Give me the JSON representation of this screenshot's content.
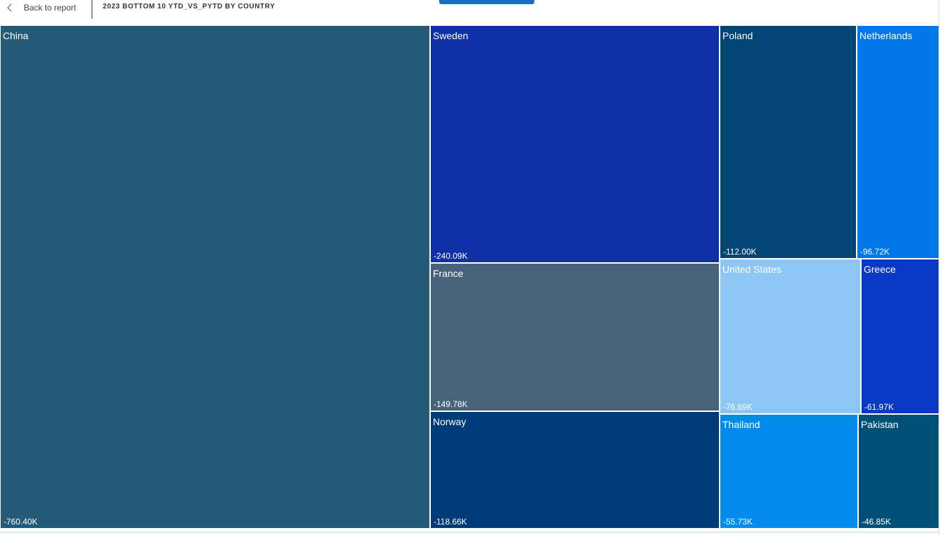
{
  "header": {
    "back_label": "Back to report",
    "back_icon": "chevron-left-icon",
    "title": "2023 BOTTOM 10 YTD_VS_PYTD BY COUNTRY"
  },
  "chart_data": {
    "type": "treemap",
    "title": "2023 BOTTOM 10 YTD_VS_PYTD BY COUNTRY",
    "items": [
      {
        "name": "China",
        "value": -760.4,
        "label": "-760.40K",
        "color": "#235a78"
      },
      {
        "name": "Sweden",
        "value": -240.09,
        "label": "-240.09K",
        "color": "#0f2fa6"
      },
      {
        "name": "France",
        "value": -149.78,
        "label": "-149.78K",
        "color": "#47637b"
      },
      {
        "name": "Norway",
        "value": -118.66,
        "label": "-118.66K",
        "color": "#013b77"
      },
      {
        "name": "Poland",
        "value": -112.0,
        "label": "-112.00K",
        "color": "#014575"
      },
      {
        "name": "Netherlands",
        "value": -96.72,
        "label": "-96.72K",
        "color": "#0177ea"
      },
      {
        "name": "United States",
        "value": -76.69,
        "label": "-76.69K",
        "color": "#8cc6f4"
      },
      {
        "name": "Greece",
        "value": -61.97,
        "label": "-61.97K",
        "color": "#0a39c6"
      },
      {
        "name": "Thailand",
        "value": -55.73,
        "label": "-55.73K",
        "color": "#018cec"
      },
      {
        "name": "Pakistan",
        "value": -46.85,
        "label": "-46.85K",
        "color": "#005076"
      }
    ]
  }
}
